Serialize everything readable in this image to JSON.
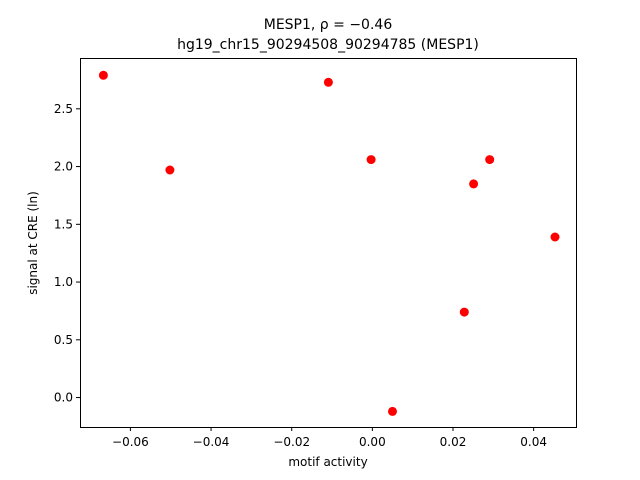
{
  "chart_data": {
    "type": "scatter",
    "title_line1": "MESP1, ρ = −0.46",
    "title_line2": "hg19_chr15_90294508_90294785 (MESP1)",
    "xlabel": "motif activity",
    "ylabel": "signal at CRE (ln)",
    "xlim": [
      -0.0725,
      0.0505
    ],
    "ylim": [
      -0.255,
      2.94
    ],
    "xticks": [
      -0.06,
      -0.04,
      -0.02,
      0.0,
      0.02,
      0.04
    ],
    "xtick_labels": [
      "−0.06",
      "−0.04",
      "−0.02",
      "0.00",
      "0.02",
      "0.04"
    ],
    "yticks": [
      0.0,
      0.5,
      1.0,
      1.5,
      2.0,
      2.5
    ],
    "ytick_labels": [
      "0.0",
      "0.5",
      "1.0",
      "1.5",
      "2.0",
      "2.5"
    ],
    "grid": false,
    "marker_color": "#ff0000",
    "points": [
      {
        "x": -0.0667,
        "y": 2.79
      },
      {
        "x": -0.0502,
        "y": 1.97
      },
      {
        "x": -0.0109,
        "y": 2.73
      },
      {
        "x": -0.0003,
        "y": 2.06
      },
      {
        "x": 0.005,
        "y": -0.12
      },
      {
        "x": 0.0228,
        "y": 0.74
      },
      {
        "x": 0.0251,
        "y": 1.85
      },
      {
        "x": 0.0291,
        "y": 2.06
      },
      {
        "x": 0.0453,
        "y": 1.39
      }
    ]
  }
}
